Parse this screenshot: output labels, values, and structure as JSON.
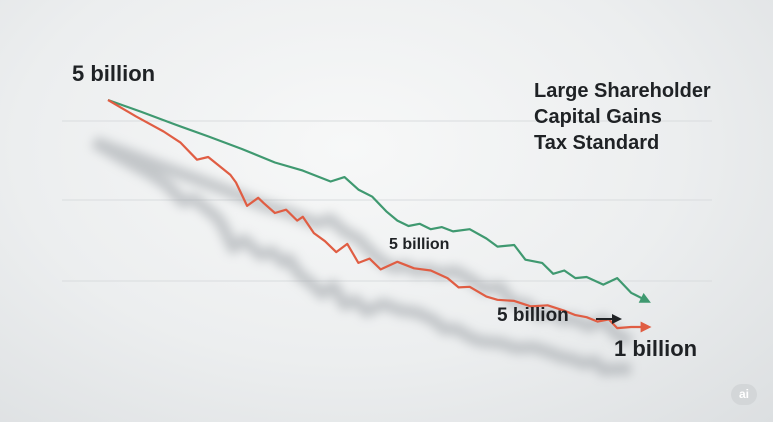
{
  "chart_data": {
    "type": "line",
    "title_lines": [
      "Large Shareholder",
      "Capital Gains",
      "Tax Standard"
    ],
    "grid": true,
    "legend": "none",
    "series": [
      {
        "color": "#3f9970",
        "x": [
          0,
          12,
          24,
          36,
          48,
          60,
          70,
          80,
          85,
          90,
          95,
          100,
          104,
          108,
          112,
          116,
          120,
          124,
          130,
          136,
          140,
          146,
          150,
          156,
          160,
          164,
          168,
          172,
          178,
          183,
          188,
          193
        ],
        "y": [
          5.0,
          4.78,
          4.55,
          4.33,
          4.1,
          3.85,
          3.7,
          3.5,
          3.58,
          3.35,
          3.22,
          2.95,
          2.78,
          2.68,
          2.72,
          2.62,
          2.66,
          2.58,
          2.62,
          2.45,
          2.3,
          2.33,
          2.06,
          2.0,
          1.8,
          1.86,
          1.72,
          1.74,
          1.6,
          1.72,
          1.45,
          1.32
        ]
      },
      {
        "color": "#e05d43",
        "x": [
          0,
          10,
          20,
          26,
          32,
          36,
          44,
          46,
          50,
          54,
          56,
          60,
          64,
          68,
          70,
          74,
          78,
          82,
          86,
          90,
          94,
          98,
          104,
          110,
          116,
          122,
          126,
          130,
          136,
          140,
          146,
          152,
          158,
          164,
          168,
          172,
          176,
          180,
          183,
          188,
          193
        ],
        "y": [
          5.0,
          4.7,
          4.42,
          4.22,
          3.9,
          3.95,
          3.62,
          3.48,
          3.05,
          3.2,
          3.1,
          2.92,
          2.98,
          2.78,
          2.85,
          2.55,
          2.4,
          2.2,
          2.35,
          2.0,
          2.08,
          1.88,
          2.02,
          1.9,
          1.86,
          1.72,
          1.55,
          1.56,
          1.38,
          1.32,
          1.3,
          1.2,
          1.22,
          1.12,
          1.04,
          1.0,
          0.92,
          0.96,
          0.8,
          0.82,
          0.82
        ]
      }
    ],
    "labels": {
      "start": "5 billion",
      "middle": "5 billion",
      "lower": "5 billion",
      "end": "1 billion"
    }
  },
  "badge": "ai",
  "colors": {
    "green": "#3f9970",
    "red": "#e05d43",
    "grid": "#d9dcde",
    "shadow": "#9ea3a7"
  }
}
